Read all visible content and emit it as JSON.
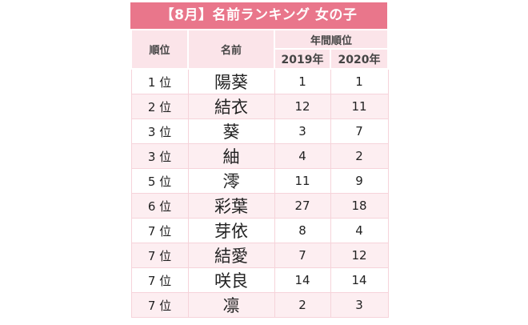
{
  "title": "【8月】名前ランキング 女の子",
  "headers": {
    "rank": "順位",
    "name": "名前",
    "annual": "年間順位",
    "y2019": "2019年",
    "y2020": "2020年"
  },
  "colors": {
    "title_bg": "#e9768b",
    "header_bg": "#fbe4e9",
    "stripe": "#fdeef1"
  },
  "rows": [
    {
      "rank": "1 位",
      "name": "陽葵",
      "y2019": "1",
      "y2020": "1"
    },
    {
      "rank": "2 位",
      "name": "結衣",
      "y2019": "12",
      "y2020": "11"
    },
    {
      "rank": "3 位",
      "name": "葵",
      "y2019": "3",
      "y2020": "7"
    },
    {
      "rank": "3 位",
      "name": "紬",
      "y2019": "4",
      "y2020": "2"
    },
    {
      "rank": "5 位",
      "name": "澪",
      "y2019": "11",
      "y2020": "9"
    },
    {
      "rank": "6 位",
      "name": "彩葉",
      "y2019": "27",
      "y2020": "18"
    },
    {
      "rank": "7 位",
      "name": "芽依",
      "y2019": "8",
      "y2020": "4"
    },
    {
      "rank": "7 位",
      "name": "結愛",
      "y2019": "7",
      "y2020": "12"
    },
    {
      "rank": "7 位",
      "name": "咲良",
      "y2019": "14",
      "y2020": "14"
    },
    {
      "rank": "7 位",
      "name": "凛",
      "y2019": "2",
      "y2020": "3"
    }
  ]
}
